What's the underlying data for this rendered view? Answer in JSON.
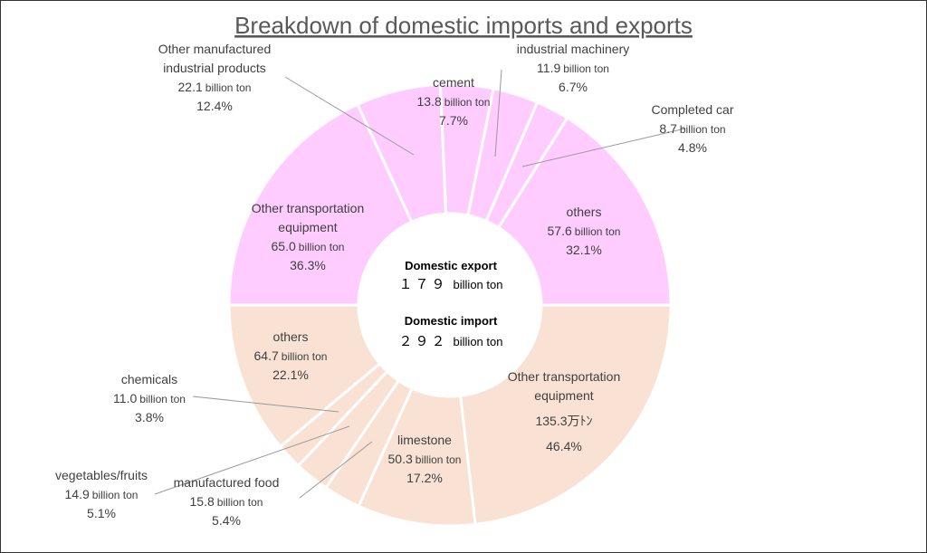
{
  "chart_data": {
    "type": "pie",
    "title": "Breakdown of domestic imports and exports",
    "colors": {
      "export": "#ffccff",
      "import": "#f9e1d3",
      "separator": "#ffffff",
      "leader": "#9a9a9a"
    },
    "center": {
      "export_title": "Domestic export",
      "export_total": "１７９",
      "export_unit": "billion ton",
      "import_title": "Domestic import",
      "import_total": "２９２",
      "import_unit": "billion ton"
    },
    "export": {
      "total": 179,
      "slices": [
        {
          "name": "others",
          "value": 57.6,
          "value_text": "57.6",
          "unit": "billion ton",
          "percent": "32.1%"
        },
        {
          "name": "Completed car",
          "value": 8.7,
          "value_text": "8.7",
          "unit": "billion ton",
          "percent": "4.8%"
        },
        {
          "name": "industrial machinery",
          "value": 11.9,
          "value_text": "11.9",
          "unit": "billion ton",
          "percent": "6.7%"
        },
        {
          "name": "cement",
          "value": 13.8,
          "value_text": "13.8",
          "unit": "billion ton",
          "percent": "7.7%"
        },
        {
          "name": "Other manufactured industrial products",
          "value": 22.1,
          "value_text": "22.1",
          "unit": "billion ton",
          "percent": "12.4%"
        },
        {
          "name": "Other transportation equipment",
          "value": 65.0,
          "value_text": "65.0",
          "unit": "billion ton",
          "percent": "36.3%"
        }
      ]
    },
    "import": {
      "total": 292,
      "slices": [
        {
          "name": "Other transportation equipment",
          "value": 135.3,
          "value_text": "135.3万ﾄﾝ",
          "unit": "",
          "percent": "46.4%"
        },
        {
          "name": "limestone",
          "value": 50.3,
          "value_text": "50.3",
          "unit": "billion ton",
          "percent": "17.2%"
        },
        {
          "name": "manufactured food",
          "value": 15.8,
          "value_text": "15.8",
          "unit": "billion ton",
          "percent": "5.4%"
        },
        {
          "name": "vegetables/fruits",
          "value": 14.9,
          "value_text": "14.9",
          "unit": "billion ton",
          "percent": "5.1%"
        },
        {
          "name": "chemicals",
          "value": 11.0,
          "value_text": "11.0",
          "unit": "billion ton",
          "percent": "3.8%"
        },
        {
          "name": "others",
          "value": 64.7,
          "value_text": "64.7",
          "unit": "billion ton",
          "percent": "22.1%"
        }
      ]
    }
  }
}
